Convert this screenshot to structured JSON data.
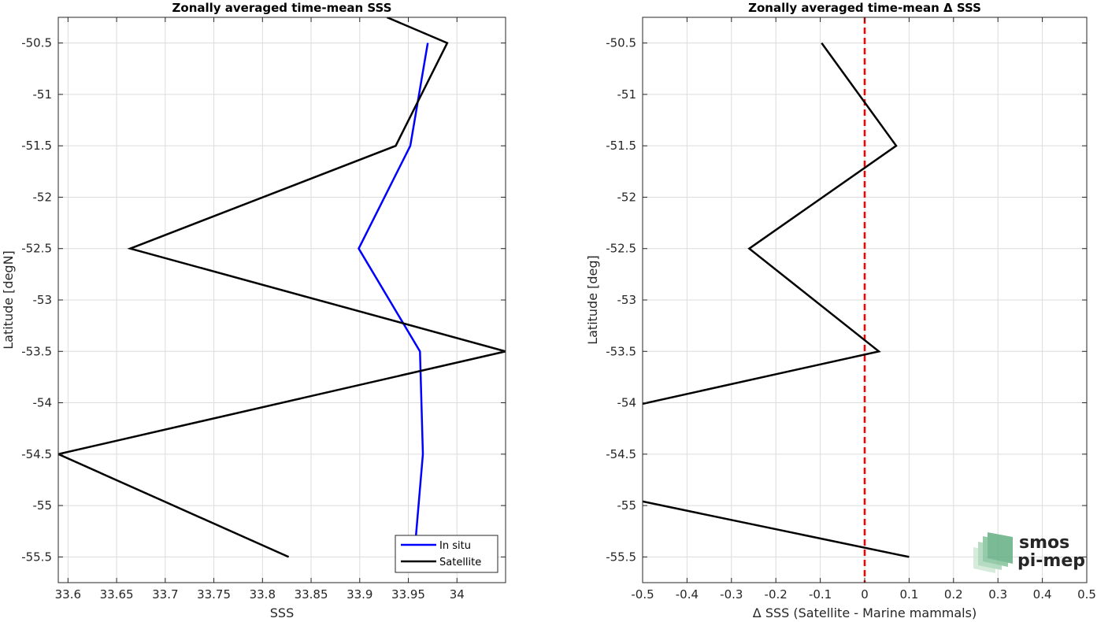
{
  "chart_data": [
    {
      "type": "line",
      "title": "Zonally averaged time-mean SSS",
      "xlabel": "SSS",
      "ylabel": "Latitude [degN]",
      "xlim": [
        33.59,
        34.05
      ],
      "ylim": [
        -55.75,
        -50.25
      ],
      "xticks": [
        33.6,
        33.65,
        33.7,
        33.75,
        33.8,
        33.85,
        33.9,
        33.95,
        34.0
      ],
      "xtick_labels": [
        "33.6",
        "33.65",
        "33.7",
        "33.75",
        "33.8",
        "33.85",
        "33.9",
        "33.95",
        "34"
      ],
      "yticks": [
        -50.5,
        -51,
        -51.5,
        -52,
        -52.5,
        -53,
        -53.5,
        -54,
        -54.5,
        -55,
        -55.5
      ],
      "ytick_labels": [
        "-50.5",
        "-51",
        "-51.5",
        "-52",
        "-52.5",
        "-53",
        "-53.5",
        "-54",
        "-54.5",
        "-55",
        "-55.5"
      ],
      "grid": true,
      "legend_position": "bottom-right",
      "series": [
        {
          "name": "In situ",
          "color": "#0000ff",
          "points": [
            {
              "x": 33.97,
              "y": -50.5
            },
            {
              "x": 33.952,
              "y": -51.5
            },
            {
              "x": 33.899,
              "y": -52.5
            },
            {
              "x": 33.962,
              "y": -53.5
            },
            {
              "x": 33.965,
              "y": -54.5
            },
            {
              "x": 33.956,
              "y": -55.5
            }
          ]
        },
        {
          "name": "Satellite",
          "color": "#000000",
          "points": [
            {
              "x": 33.928,
              "y": -50.25
            },
            {
              "x": 33.99,
              "y": -50.5
            },
            {
              "x": 33.937,
              "y": -51.5
            },
            {
              "x": 33.664,
              "y": -52.5
            },
            {
              "x": 34.05,
              "y": -53.5
            },
            {
              "x": 33.59,
              "y": -54.5
            },
            {
              "x": 33.827,
              "y": -55.5
            }
          ]
        }
      ]
    },
    {
      "type": "line",
      "title": "Zonally averaged time-mean Δ SSS",
      "xlabel": "Δ SSS (Satellite - Marine mammals)",
      "ylabel": "Latitude [deg]",
      "xlim": [
        -0.5,
        0.5
      ],
      "ylim": [
        -55.75,
        -50.25
      ],
      "xticks": [
        -0.5,
        -0.4,
        -0.3,
        -0.2,
        -0.1,
        0,
        0.1,
        0.2,
        0.3,
        0.4,
        0.5
      ],
      "xtick_labels": [
        "-0.5",
        "-0.4",
        "-0.3",
        "-0.2",
        "-0.1",
        "0",
        "0.1",
        "0.2",
        "0.3",
        "0.4",
        "0.5"
      ],
      "yticks": [
        -50.5,
        -51,
        -51.5,
        -52,
        -52.5,
        -53,
        -53.5,
        -54,
        -54.5,
        -55,
        -55.5
      ],
      "ytick_labels": [
        "-50.5",
        "-51",
        "-51.5",
        "-52",
        "-52.5",
        "-53",
        "-53.5",
        "-54",
        "-54.5",
        "-55",
        "-55.5"
      ],
      "grid": true,
      "reference_line": {
        "x": 0,
        "color": "#ff0000",
        "style": "dashed"
      },
      "series": [
        {
          "color": "#000000",
          "segments": [
            [
              {
                "x": -0.097,
                "y": -50.5
              },
              {
                "x": 0.071,
                "y": -51.5
              },
              {
                "x": -0.26,
                "y": -52.5
              },
              {
                "x": 0.032,
                "y": -53.5
              },
              {
                "x": -0.5,
                "y": -54.01
              }
            ],
            [
              {
                "x": -0.5,
                "y": -54.96
              },
              {
                "x": 0.1,
                "y": -55.5
              }
            ]
          ]
        }
      ]
    }
  ],
  "logo": {
    "line1": "smos",
    "line2": "pi-mep",
    "color": "#5fb48a"
  }
}
